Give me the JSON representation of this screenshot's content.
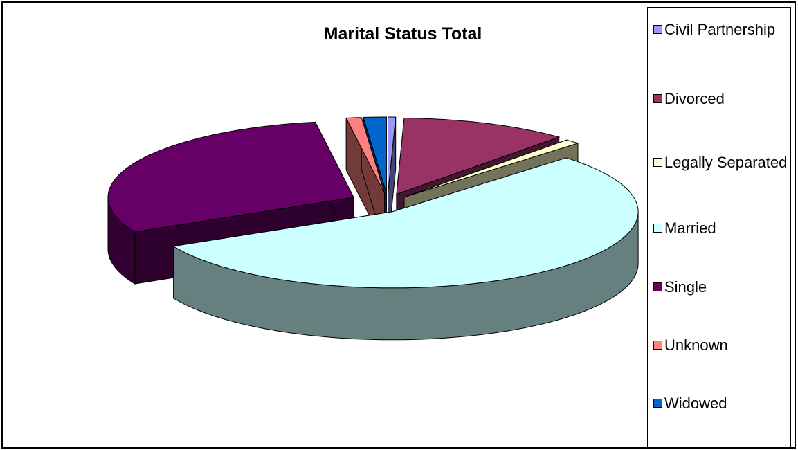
{
  "chart_data": {
    "type": "pie",
    "title": "Marital Status Total",
    "categories": [
      "Civil Partnership",
      "Divorced",
      "Legally Separated",
      "Married",
      "Single",
      "Unknown",
      "Widowed"
    ],
    "values": [
      0.5,
      11,
      1,
      55,
      30,
      1,
      1.5
    ],
    "colors": [
      "#9999ff",
      "#993366",
      "#ffffcc",
      "#ccffff",
      "#660066",
      "#ff8080",
      "#0066cc"
    ],
    "legend": "right"
  }
}
